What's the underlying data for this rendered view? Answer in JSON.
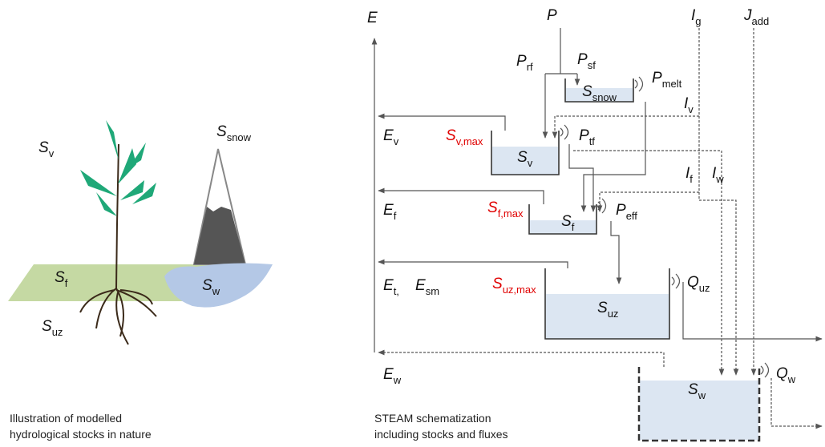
{
  "illustration": {
    "labels": [
      {
        "base": "S",
        "sub": "v"
      },
      {
        "base": "S",
        "sub": "snow"
      },
      {
        "base": "S",
        "sub": "f"
      },
      {
        "base": "S",
        "sub": "w"
      },
      {
        "base": "S",
        "sub": "uz"
      }
    ],
    "caption_lines": [
      "Illustration of modelled",
      "hydrological stocks in nature"
    ]
  },
  "schematic": {
    "labels": [
      {
        "base": "E",
        "sub": ""
      },
      {
        "base": "P",
        "sub": ""
      },
      {
        "base": "I",
        "sub": "g"
      },
      {
        "base": "J",
        "sub": "add"
      },
      {
        "base": "P",
        "sub": "rf"
      },
      {
        "base": "P",
        "sub": "sf"
      },
      {
        "base": "S",
        "sub": "snow"
      },
      {
        "base": "P",
        "sub": "melt"
      },
      {
        "base": "I",
        "sub": "v"
      },
      {
        "base": "E",
        "sub": "v"
      },
      {
        "base": "S",
        "sub": "v,max",
        "color": "#e00000"
      },
      {
        "base": "P",
        "sub": "tf"
      },
      {
        "base": "S",
        "sub": "v"
      },
      {
        "base": "I",
        "sub": "f"
      },
      {
        "base": "I",
        "sub": "w"
      },
      {
        "base": "E",
        "sub": "f"
      },
      {
        "base": "S",
        "sub": "f,max",
        "color": "#e00000"
      },
      {
        "base": "P",
        "sub": "eff"
      },
      {
        "base": "S",
        "sub": "f"
      },
      {
        "base": "E",
        "sub": "t,"
      },
      {
        "base": "E",
        "sub": "sm"
      },
      {
        "base": "S",
        "sub": "uz,max",
        "color": "#e00000"
      },
      {
        "base": "Q",
        "sub": "uz"
      },
      {
        "base": "S",
        "sub": "uz"
      },
      {
        "base": "E",
        "sub": "w"
      },
      {
        "base": "Q",
        "sub": "w"
      },
      {
        "base": "S",
        "sub": "w"
      }
    ],
    "caption_lines": [
      "STEAM schematization",
      "including stocks and fluxes"
    ]
  }
}
